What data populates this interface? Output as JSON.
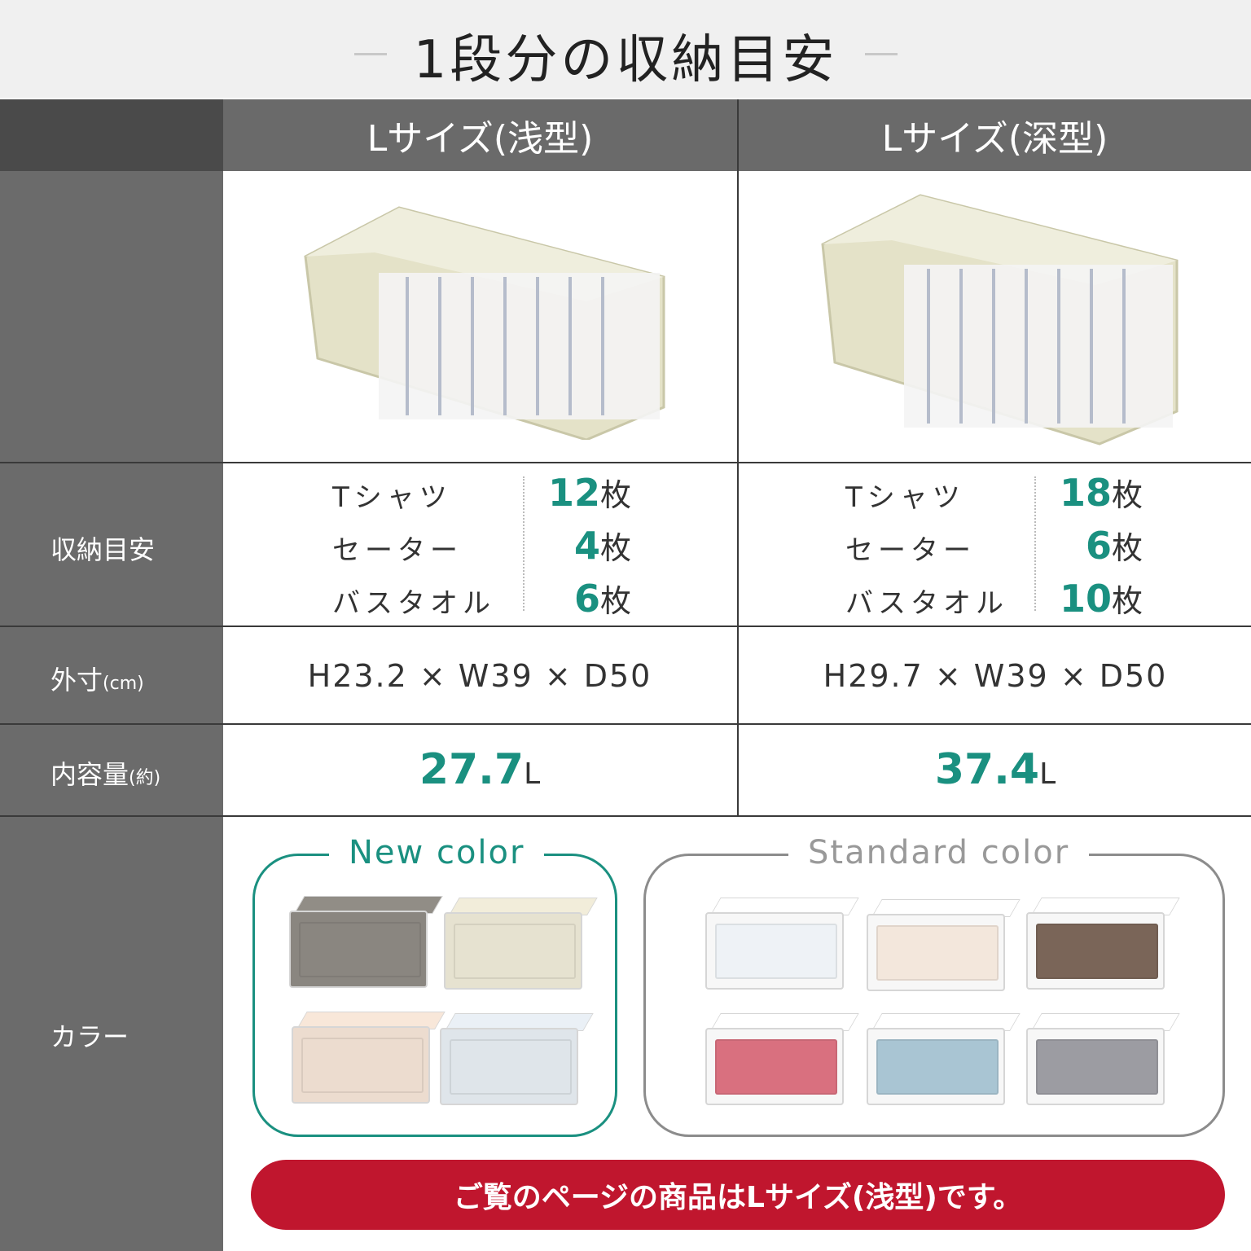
{
  "title": "1段分の収納目安",
  "columns": [
    {
      "name": "Lサイズ(浅型)",
      "items": [
        {
          "label": "Tシャツ",
          "count": "12",
          "unit": "枚"
        },
        {
          "label": "セーター",
          "count": "4",
          "unit": "枚"
        },
        {
          "label": "バスタオル",
          "count": "6",
          "unit": "枚"
        }
      ],
      "dimensions": "H23.2 × W39 × D50",
      "volume": "27.7",
      "volume_unit": "L"
    },
    {
      "name": "Lサイズ(深型)",
      "items": [
        {
          "label": "Tシャツ",
          "count": "18",
          "unit": "枚"
        },
        {
          "label": "セーター",
          "count": "6",
          "unit": "枚"
        },
        {
          "label": "バスタオル",
          "count": "10",
          "unit": "枚"
        }
      ],
      "dimensions": "H29.7 × W39 × D50",
      "volume": "37.4",
      "volume_unit": "L"
    }
  ],
  "rows": {
    "storage": "収納目安",
    "size": "外寸",
    "size_unit": "(cm)",
    "volume": "内容量",
    "volume_unit": "(約)",
    "color": "カラー"
  },
  "colors": {
    "new_label": "New color",
    "standard_label": "Standard color",
    "new": [
      "#8a8680",
      "#e6e2d0",
      "#ecdccf",
      "#dfe5ea"
    ],
    "standard": [
      "#eef2f6",
      "#f3e7dc",
      "#7a6558",
      "#d9707f",
      "#a9c5d3",
      "#9c9ca2"
    ]
  },
  "banner": "ご覧のページの商品はLサイズ(浅型)です。",
  "accent": "#1a9080",
  "banner_color": "#c0162e"
}
